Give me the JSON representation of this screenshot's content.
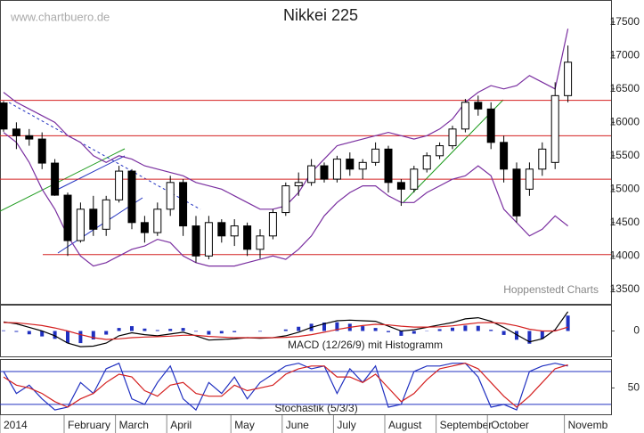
{
  "source": "www.chartbuero.de",
  "credit": "Hoppenstedt Charts",
  "chart_data": [
    {
      "type": "candlestick",
      "title": "Nikkei 225",
      "categories": [
        "2014",
        null,
        null,
        null,
        null,
        "February",
        null,
        null,
        null,
        "March",
        null,
        null,
        null,
        "April",
        null,
        null,
        null,
        null,
        "May",
        null,
        null,
        null,
        "June",
        null,
        null,
        null,
        "July",
        null,
        null,
        null,
        "August",
        null,
        null,
        null,
        "September",
        null,
        null,
        null,
        "October",
        null,
        null,
        null,
        null,
        null,
        "Novemb"
      ],
      "open": [
        16290,
        15900,
        15800,
        15750,
        15390,
        14910,
        14230,
        14700,
        14400,
        14840,
        15270,
        14500,
        14350,
        14700,
        15100,
        14450,
        14000,
        14500,
        14300,
        14450,
        14100,
        14300,
        14650,
        15050,
        15100,
        15350,
        15150,
        15450,
        15300,
        15400,
        15600,
        15100,
        15000,
        15300,
        15500,
        15650,
        15900,
        16300,
        16200,
        15700,
        15300,
        15000,
        15300,
        15400,
        16400
      ],
      "high": [
        16320,
        16000,
        15900,
        15850,
        15450,
        14950,
        14800,
        14900,
        14900,
        15350,
        15300,
        14600,
        14800,
        15200,
        15150,
        14600,
        14600,
        14550,
        14550,
        14500,
        14400,
        14700,
        15100,
        15250,
        15450,
        15400,
        15500,
        15550,
        15450,
        15700,
        15650,
        15150,
        15350,
        15550,
        15700,
        15950,
        16350,
        16400,
        16300,
        15800,
        15400,
        15400,
        15700,
        16600,
        17150
      ],
      "low": [
        15860,
        15600,
        15650,
        15300,
        14900,
        14000,
        14200,
        14300,
        14300,
        14800,
        14400,
        14200,
        14300,
        14600,
        14300,
        13900,
        13950,
        14200,
        14150,
        14000,
        13960,
        14250,
        14600,
        14900,
        15050,
        15100,
        15100,
        15200,
        15150,
        15350,
        14950,
        14750,
        14950,
        15250,
        15450,
        15600,
        15850,
        16100,
        15600,
        15100,
        14500,
        14900,
        15200,
        15300,
        16300
      ],
      "close": [
        15900,
        15800,
        15750,
        15390,
        14910,
        14230,
        14700,
        14400,
        14840,
        15270,
        14500,
        14350,
        14700,
        15100,
        14450,
        14000,
        14500,
        14300,
        14450,
        14100,
        14300,
        14650,
        15050,
        15100,
        15350,
        15150,
        15450,
        15300,
        15400,
        15600,
        15100,
        15000,
        15300,
        15500,
        15650,
        15900,
        16300,
        16200,
        15700,
        15300,
        14600,
        15300,
        15600,
        16400,
        16900
      ],
      "series": [
        {
          "color": "#7a2fa0",
          "values": [
            16450,
            16300,
            16200,
            16100,
            16000,
            15800,
            15700,
            15500,
            15400,
            15500,
            15450,
            15350,
            15300,
            15250,
            15200,
            15100,
            15050,
            15000,
            14900,
            14800,
            14700,
            14700,
            14750,
            14950,
            15250,
            15450,
            15650,
            15700,
            15750,
            15800,
            15850,
            15800,
            15750,
            15800,
            15900,
            16050,
            16300,
            16450,
            16550,
            16500,
            16550,
            16700,
            16600,
            16500,
            17400
          ]
        },
        {
          "color": "#7a2fa0",
          "values": [
            15850,
            15700,
            15400,
            15000,
            14700,
            14300,
            14000,
            13850,
            13900,
            14000,
            14100,
            14150,
            14250,
            14200,
            14000,
            13900,
            13850,
            13850,
            13850,
            13900,
            13950,
            14000,
            13950,
            14100,
            14300,
            14600,
            14800,
            14950,
            15050,
            15050,
            14900,
            14800,
            14800,
            14950,
            15050,
            15150,
            15200,
            15350,
            15200,
            14700,
            14500,
            14300,
            14400,
            14600,
            14450
          ]
        }
      ],
      "levels": [
        16330,
        15800,
        15150,
        14020
      ],
      "level_color": "#d42020",
      "ylim": [
        13284,
        17818
      ],
      "yticks": [
        13500,
        14000,
        14500,
        15000,
        15500,
        16000,
        16500,
        17000,
        17500
      ]
    },
    {
      "type": "macd",
      "title": "MACD (12/26/9) mit Histogramm",
      "series": [
        {
          "color": "#000000",
          "values": [
            150,
            120,
            60,
            0,
            -80,
            -200,
            -260,
            -250,
            -200,
            -80,
            -30,
            -60,
            -80,
            -50,
            -20,
            -80,
            -150,
            -140,
            -130,
            -110,
            -120,
            -110,
            -80,
            -20,
            60,
            120,
            170,
            180,
            170,
            160,
            80,
            0,
            20,
            60,
            100,
            140,
            200,
            220,
            160,
            60,
            -60,
            -180,
            -130,
            20,
            320
          ]
        },
        {
          "color": "#d42020",
          "values": [
            140,
            135,
            115,
            90,
            50,
            0,
            -60,
            -110,
            -140,
            -130,
            -110,
            -100,
            -95,
            -85,
            -70,
            -70,
            -90,
            -100,
            -110,
            -110,
            -110,
            -110,
            -105,
            -90,
            -60,
            -20,
            25,
            60,
            90,
            110,
            100,
            80,
            65,
            65,
            70,
            85,
            110,
            135,
            140,
            125,
            85,
            30,
            0,
            0,
            65
          ]
        }
      ],
      "histogram": {
        "color": "#2030c0",
        "values": [
          10,
          -15,
          -55,
          -90,
          -130,
          -200,
          -200,
          -140,
          -60,
          50,
          80,
          40,
          15,
          35,
          50,
          -10,
          -60,
          -40,
          -20,
          0,
          -10,
          0,
          25,
          70,
          120,
          140,
          145,
          120,
          80,
          50,
          -20,
          -80,
          -45,
          -5,
          30,
          55,
          90,
          85,
          20,
          -65,
          -145,
          -210,
          -130,
          20,
          255
        ]
      },
      "ylim": [
        -420,
        420
      ],
      "yticks": [
        0
      ]
    },
    {
      "type": "stochastic",
      "title": "Stochastik (5/3/3)",
      "series": [
        {
          "color": "#2030c0",
          "values": [
            80,
            40,
            55,
            30,
            10,
            15,
            60,
            40,
            85,
            95,
            30,
            20,
            60,
            90,
            30,
            10,
            60,
            40,
            70,
            30,
            60,
            75,
            90,
            95,
            85,
            90,
            40,
            85,
            60,
            90,
            15,
            20,
            80,
            90,
            90,
            95,
            95,
            70,
            15,
            20,
            10,
            80,
            90,
            95,
            90
          ]
        },
        {
          "color": "#d42020",
          "values": [
            70,
            55,
            50,
            40,
            25,
            15,
            30,
            40,
            60,
            75,
            70,
            45,
            35,
            55,
            60,
            40,
            35,
            35,
            55,
            45,
            50,
            55,
            75,
            85,
            90,
            90,
            70,
            70,
            60,
            75,
            50,
            25,
            40,
            65,
            85,
            90,
            95,
            85,
            60,
            35,
            15,
            35,
            60,
            85,
            92
          ]
        }
      ],
      "levels": [
        80,
        20
      ],
      "level_color": "#2030c0",
      "ylim": [
        2,
        101
      ],
      "yticks": [
        50
      ]
    }
  ]
}
